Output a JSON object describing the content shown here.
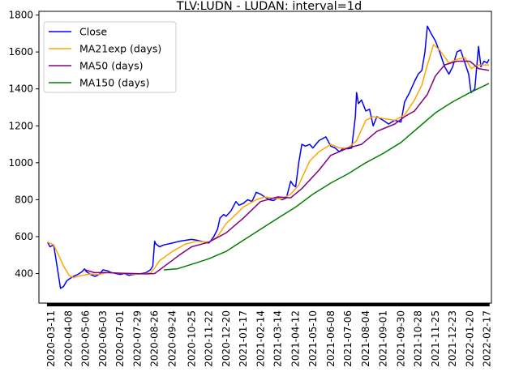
{
  "chart_data": {
    "type": "line",
    "title": "TLV:LUDN - LUDAN: interval=1d",
    "xlabel": "",
    "ylabel": "",
    "xlim": [
      "2020-02-20",
      "2022-02-24"
    ],
    "ylim": [
      240,
      1820
    ],
    "grid": false,
    "legend_position": "top-left",
    "x_tick_labels": [
      "2020-03-11",
      "2020-04-08",
      "2020-05-06",
      "2020-06-03",
      "2020-07-01",
      "2020-07-29",
      "2020-08-26",
      "2020-09-24",
      "2020-10-25",
      "2020-11-22",
      "2020-12-20",
      "2021-01-17",
      "2021-02-14",
      "2021-03-14",
      "2021-04-12",
      "2021-05-10",
      "2021-06-08",
      "2021-07-06",
      "2021-08-04",
      "2021-09-01",
      "2021-09-30",
      "2021-10-28",
      "2021-11-25",
      "2021-12-23",
      "2022-01-20",
      "2022-02-17"
    ],
    "y_ticks": [
      400,
      600,
      800,
      1000,
      1200,
      1400,
      1600,
      1800
    ],
    "series": [
      {
        "name": "Close",
        "color": "#0000ff",
        "points": [
          [
            "2020-03-05",
            570
          ],
          [
            "2020-03-09",
            545
          ],
          [
            "2020-03-15",
            555
          ],
          [
            "2020-03-19",
            470
          ],
          [
            "2020-03-23",
            385
          ],
          [
            "2020-03-26",
            320
          ],
          [
            "2020-03-31",
            330
          ],
          [
            "2020-04-05",
            360
          ],
          [
            "2020-04-09",
            370
          ],
          [
            "2020-04-16",
            385
          ],
          [
            "2020-04-23",
            395
          ],
          [
            "2020-04-30",
            410
          ],
          [
            "2020-05-04",
            425
          ],
          [
            "2020-05-07",
            410
          ],
          [
            "2020-05-14",
            395
          ],
          [
            "2020-05-21",
            385
          ],
          [
            "2020-05-28",
            395
          ],
          [
            "2020-06-03",
            420
          ],
          [
            "2020-06-10",
            415
          ],
          [
            "2020-06-17",
            405
          ],
          [
            "2020-06-24",
            400
          ],
          [
            "2020-07-01",
            395
          ],
          [
            "2020-07-08",
            400
          ],
          [
            "2020-07-15",
            390
          ],
          [
            "2020-07-22",
            395
          ],
          [
            "2020-07-29",
            398
          ],
          [
            "2020-08-05",
            400
          ],
          [
            "2020-08-12",
            405
          ],
          [
            "2020-08-19",
            420
          ],
          [
            "2020-08-23",
            440
          ],
          [
            "2020-08-26",
            575
          ],
          [
            "2020-08-28",
            560
          ],
          [
            "2020-09-03",
            545
          ],
          [
            "2020-09-10",
            555
          ],
          [
            "2020-09-24",
            565
          ],
          [
            "2020-10-05",
            575
          ],
          [
            "2020-10-15",
            580
          ],
          [
            "2020-10-25",
            585
          ],
          [
            "2020-11-03",
            580
          ],
          [
            "2020-11-10",
            575
          ],
          [
            "2020-11-22",
            565
          ],
          [
            "2020-11-30",
            600
          ],
          [
            "2020-12-06",
            640
          ],
          [
            "2020-12-10",
            700
          ],
          [
            "2020-12-16",
            720
          ],
          [
            "2020-12-20",
            710
          ],
          [
            "2020-12-28",
            740
          ],
          [
            "2021-01-05",
            790
          ],
          [
            "2021-01-10",
            770
          ],
          [
            "2021-01-17",
            780
          ],
          [
            "2021-01-24",
            800
          ],
          [
            "2021-01-31",
            790
          ],
          [
            "2021-02-07",
            840
          ],
          [
            "2021-02-14",
            830
          ],
          [
            "2021-02-21",
            815
          ],
          [
            "2021-02-28",
            800
          ],
          [
            "2021-03-07",
            795
          ],
          [
            "2021-03-14",
            810
          ],
          [
            "2021-03-21",
            800
          ],
          [
            "2021-03-28",
            810
          ],
          [
            "2021-04-04",
            900
          ],
          [
            "2021-04-08",
            880
          ],
          [
            "2021-04-12",
            870
          ],
          [
            "2021-04-17",
            1000
          ],
          [
            "2021-04-22",
            1100
          ],
          [
            "2021-04-28",
            1090
          ],
          [
            "2021-05-05",
            1100
          ],
          [
            "2021-05-10",
            1080
          ],
          [
            "2021-05-20",
            1120
          ],
          [
            "2021-05-31",
            1140
          ],
          [
            "2021-06-08",
            1090
          ],
          [
            "2021-06-15",
            1080
          ],
          [
            "2021-06-22",
            1060
          ],
          [
            "2021-06-29",
            1080
          ],
          [
            "2021-07-06",
            1075
          ],
          [
            "2021-07-12",
            1080
          ],
          [
            "2021-07-18",
            1250
          ],
          [
            "2021-07-20",
            1380
          ],
          [
            "2021-07-23",
            1320
          ],
          [
            "2021-07-28",
            1340
          ],
          [
            "2021-08-04",
            1280
          ],
          [
            "2021-08-10",
            1290
          ],
          [
            "2021-08-16",
            1200
          ],
          [
            "2021-08-22",
            1250
          ],
          [
            "2021-09-01",
            1230
          ],
          [
            "2021-09-10",
            1210
          ],
          [
            "2021-09-20",
            1230
          ],
          [
            "2021-09-30",
            1220
          ],
          [
            "2021-10-06",
            1330
          ],
          [
            "2021-10-14",
            1380
          ],
          [
            "2021-10-22",
            1440
          ],
          [
            "2021-10-28",
            1480
          ],
          [
            "2021-11-03",
            1500
          ],
          [
            "2021-11-08",
            1600
          ],
          [
            "2021-11-12",
            1740
          ],
          [
            "2021-11-18",
            1700
          ],
          [
            "2021-11-25",
            1660
          ],
          [
            "2021-12-02",
            1600
          ],
          [
            "2021-12-10",
            1520
          ],
          [
            "2021-12-17",
            1480
          ],
          [
            "2021-12-23",
            1520
          ],
          [
            "2021-12-30",
            1600
          ],
          [
            "2022-01-05",
            1610
          ],
          [
            "2022-01-12",
            1540
          ],
          [
            "2022-01-18",
            1480
          ],
          [
            "2022-01-22",
            1380
          ],
          [
            "2022-01-28",
            1400
          ],
          [
            "2022-02-03",
            1630
          ],
          [
            "2022-02-07",
            1520
          ],
          [
            "2022-02-12",
            1550
          ],
          [
            "2022-02-17",
            1540
          ],
          [
            "2022-02-20",
            1560
          ]
        ]
      },
      {
        "name": "MA21exp (days)",
        "color": "#ffa500",
        "points": [
          [
            "2020-03-05",
            570
          ],
          [
            "2020-03-15",
            555
          ],
          [
            "2020-03-23",
            500
          ],
          [
            "2020-03-31",
            440
          ],
          [
            "2020-04-09",
            390
          ],
          [
            "2020-04-16",
            378
          ],
          [
            "2020-04-30",
            390
          ],
          [
            "2020-05-14",
            398
          ],
          [
            "2020-05-28",
            395
          ],
          [
            "2020-06-10",
            405
          ],
          [
            "2020-06-24",
            403
          ],
          [
            "2020-07-08",
            400
          ],
          [
            "2020-07-22",
            397
          ],
          [
            "2020-08-05",
            398
          ],
          [
            "2020-08-19",
            403
          ],
          [
            "2020-08-26",
            430
          ],
          [
            "2020-09-03",
            470
          ],
          [
            "2020-09-24",
            520
          ],
          [
            "2020-10-15",
            560
          ],
          [
            "2020-11-03",
            575
          ],
          [
            "2020-11-22",
            570
          ],
          [
            "2020-12-06",
            600
          ],
          [
            "2020-12-20",
            670
          ],
          [
            "2021-01-05",
            720
          ],
          [
            "2021-01-17",
            760
          ],
          [
            "2021-02-07",
            800
          ],
          [
            "2021-02-21",
            815
          ],
          [
            "2021-03-07",
            808
          ],
          [
            "2021-03-21",
            805
          ],
          [
            "2021-04-04",
            830
          ],
          [
            "2021-04-17",
            880
          ],
          [
            "2021-05-05",
            1010
          ],
          [
            "2021-05-20",
            1060
          ],
          [
            "2021-06-08",
            1100
          ],
          [
            "2021-06-22",
            1080
          ],
          [
            "2021-07-06",
            1080
          ],
          [
            "2021-07-20",
            1120
          ],
          [
            "2021-08-04",
            1230
          ],
          [
            "2021-08-16",
            1250
          ],
          [
            "2021-09-01",
            1240
          ],
          [
            "2021-09-20",
            1230
          ],
          [
            "2021-10-06",
            1260
          ],
          [
            "2021-10-22",
            1340
          ],
          [
            "2021-11-03",
            1420
          ],
          [
            "2021-11-12",
            1530
          ],
          [
            "2021-11-22",
            1640
          ],
          [
            "2021-12-02",
            1610
          ],
          [
            "2021-12-17",
            1540
          ],
          [
            "2021-12-30",
            1560
          ],
          [
            "2022-01-12",
            1570
          ],
          [
            "2022-01-22",
            1510
          ],
          [
            "2022-02-03",
            1530
          ],
          [
            "2022-02-12",
            1530
          ],
          [
            "2022-02-20",
            1530
          ]
        ]
      },
      {
        "name": "MA50 (days)",
        "color": "#800080",
        "points": [
          [
            "2020-05-05",
            420
          ],
          [
            "2020-05-20",
            405
          ],
          [
            "2020-06-10",
            405
          ],
          [
            "2020-07-01",
            402
          ],
          [
            "2020-07-22",
            400
          ],
          [
            "2020-08-12",
            398
          ],
          [
            "2020-08-26",
            400
          ],
          [
            "2020-09-15",
            450
          ],
          [
            "2020-10-05",
            500
          ],
          [
            "2020-10-25",
            545
          ],
          [
            "2020-11-22",
            570
          ],
          [
            "2020-12-20",
            620
          ],
          [
            "2021-01-17",
            700
          ],
          [
            "2021-02-14",
            790
          ],
          [
            "2021-03-14",
            815
          ],
          [
            "2021-04-04",
            810
          ],
          [
            "2021-04-22",
            860
          ],
          [
            "2021-05-20",
            960
          ],
          [
            "2021-06-08",
            1040
          ],
          [
            "2021-07-06",
            1080
          ],
          [
            "2021-07-28",
            1100
          ],
          [
            "2021-08-22",
            1170
          ],
          [
            "2021-09-20",
            1210
          ],
          [
            "2021-10-06",
            1250
          ],
          [
            "2021-10-22",
            1280
          ],
          [
            "2021-11-12",
            1370
          ],
          [
            "2021-11-25",
            1470
          ],
          [
            "2021-12-10",
            1530
          ],
          [
            "2021-12-30",
            1550
          ],
          [
            "2022-01-20",
            1550
          ],
          [
            "2022-02-03",
            1510
          ],
          [
            "2022-02-20",
            1500
          ]
        ]
      },
      {
        "name": "MA150 (days)",
        "color": "#008000",
        "points": [
          [
            "2020-09-10",
            420
          ],
          [
            "2020-10-01",
            425
          ],
          [
            "2020-10-25",
            450
          ],
          [
            "2020-11-22",
            480
          ],
          [
            "2020-12-20",
            520
          ],
          [
            "2021-01-17",
            580
          ],
          [
            "2021-02-14",
            640
          ],
          [
            "2021-03-14",
            700
          ],
          [
            "2021-04-12",
            760
          ],
          [
            "2021-05-10",
            830
          ],
          [
            "2021-06-08",
            890
          ],
          [
            "2021-07-06",
            940
          ],
          [
            "2021-08-04",
            1000
          ],
          [
            "2021-09-01",
            1050
          ],
          [
            "2021-09-30",
            1110
          ],
          [
            "2021-10-28",
            1190
          ],
          [
            "2021-11-25",
            1270
          ],
          [
            "2021-12-23",
            1330
          ],
          [
            "2022-01-20",
            1380
          ],
          [
            "2022-02-20",
            1430
          ]
        ]
      }
    ]
  }
}
